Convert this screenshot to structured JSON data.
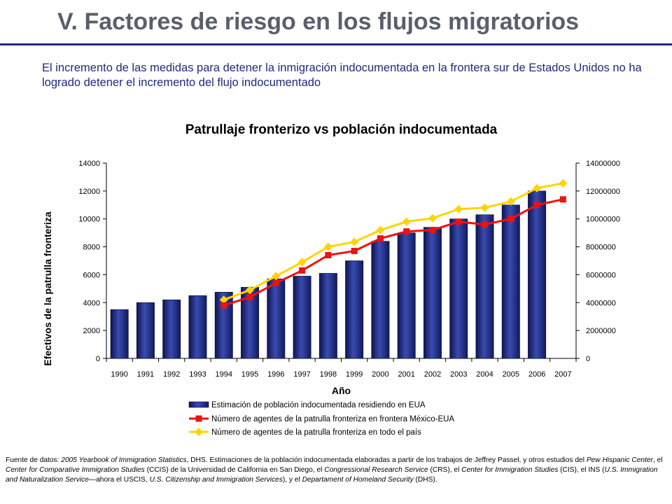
{
  "slide": {
    "title": "V. Factores de riesgo en los flujos migratorios",
    "subtitle": "El incremento de las medidas para detener la inmigración indocumentada en la frontera sur de Estados Unidos no ha logrado detener el incremento del flujo indocumentado"
  },
  "chart_data": {
    "type": "bar",
    "title": "Patrullaje fronterizo vs población indocumentada",
    "xlabel": "Año",
    "ylabel": "Efectivos de la patrulla fronteriza",
    "y2label": "",
    "ylim": [
      0,
      14000
    ],
    "y2lim": [
      0,
      14000000
    ],
    "yticks": [
      "0",
      "2000",
      "4000",
      "6000",
      "8000",
      "10000",
      "12000",
      "14000"
    ],
    "y2ticks": [
      "0",
      "2000000",
      "4000000",
      "6000000",
      "8000000",
      "10000000",
      "12000000",
      "14000000"
    ],
    "categories": [
      "1990",
      "1991",
      "1992",
      "1993",
      "1994",
      "1995",
      "1996",
      "1997",
      "1998",
      "1999",
      "2000",
      "2001",
      "2002",
      "2003",
      "2004",
      "2005",
      "2006",
      "2007"
    ],
    "series": [
      {
        "name": "Estimación de población indocumentada residiendo en EUA",
        "type": "bar",
        "axis": "right",
        "color": "#1f2a7a",
        "values": [
          3500000,
          4000000,
          4200000,
          4500000,
          4750000,
          5100000,
          5700000,
          5900000,
          6100000,
          7000000,
          8400000,
          9000000,
          9400000,
          10000000,
          10300000,
          11000000,
          12000000,
          null
        ]
      },
      {
        "name": "Número de agentes de la patrulla fronteriza en frontera México-EUA",
        "type": "line",
        "axis": "left",
        "color": "#ee1111",
        "marker": "square",
        "values": [
          null,
          null,
          null,
          null,
          3800,
          4400,
          5400,
          6300,
          7400,
          7700,
          8600,
          9100,
          9200,
          9800,
          9600,
          10000,
          11000,
          11400
        ]
      },
      {
        "name": "Número de agentes de la patrulla fronteriza en todo el país",
        "type": "line",
        "axis": "left",
        "color": "#ffd400",
        "marker": "diamond",
        "values": [
          null,
          null,
          null,
          null,
          4200,
          4900,
          5900,
          6900,
          8000,
          8350,
          9200,
          9800,
          10050,
          10700,
          10800,
          11250,
          12200,
          12550
        ]
      }
    ],
    "grid": false,
    "legend": "bottom"
  },
  "footnote": {
    "p1": "Fuente de datos: ",
    "i1": "2005 Yearbook of Immigration Statistics",
    "p2": ", DHS.  Estimaciones de la población indocumentada elaboradas a partir de los trabajos de Jeffrey Passel, y otros estudios del ",
    "i2": "Pew Hispanic Center",
    "p3": ", el ",
    "i3": "Center for Comparative Immigration Studies",
    "p4": " (CCIS)  de la Universidad de California en San Diego, el ",
    "i4": "Congressional Research Service",
    "p5": " (CRS), el ",
    "i5": "Center for Immigration Studies",
    "p6": " (CIS),  el INS (",
    "i6": "U.S. Immigration and Naturalization Service",
    "p7": "—ahora el USCIS, ",
    "i7": "U.S. Citizenship and Immigration Services",
    "p8": "), y el ",
    "i8": "Departament of Homeland Security",
    "p9": " (DHS)."
  }
}
